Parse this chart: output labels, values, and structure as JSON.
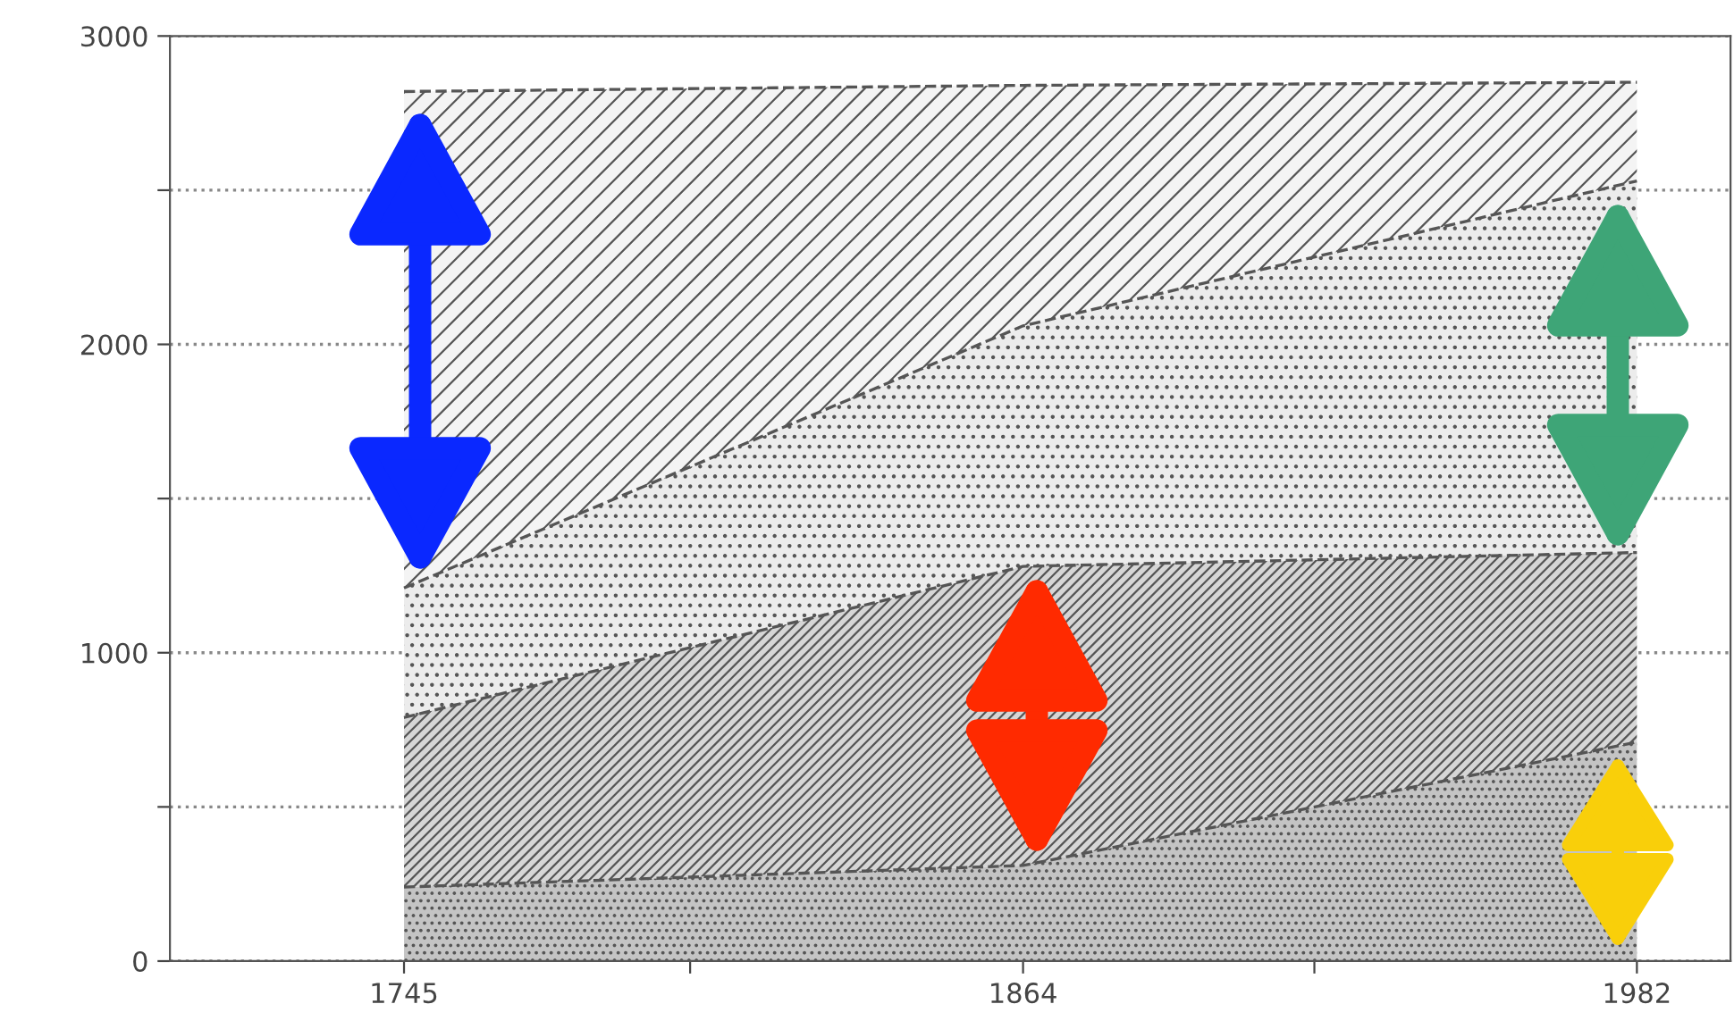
{
  "chart_data": {
    "type": "area",
    "stacked": true,
    "x": [
      1745,
      1864,
      1982
    ],
    "series": [
      {
        "color": "#c4c4c4",
        "values": [
          240,
          310,
          710
        ]
      },
      {
        "color": "#d6d6d6",
        "values": [
          550,
          970,
          615
        ]
      },
      {
        "color": "#ececec",
        "values": [
          420,
          780,
          1205
        ]
      },
      {
        "color": "#f4f4f4",
        "values": [
          1610,
          780,
          320
        ]
      }
    ],
    "xlim": [
      1700,
      2000
    ],
    "xticks": [
      1745,
      {
        "value": 1800,
        "label": null
      },
      1864,
      {
        "value": 1920,
        "label": null
      },
      1982
    ],
    "ylim": [
      0,
      3000
    ],
    "yticks": [
      0,
      {
        "value": 500,
        "label": null
      },
      1000,
      {
        "value": 1500,
        "label": null
      },
      2000,
      {
        "value": 2500,
        "label": null
      },
      3000
    ],
    "grid": "y",
    "line_style": "dashed"
  }
}
